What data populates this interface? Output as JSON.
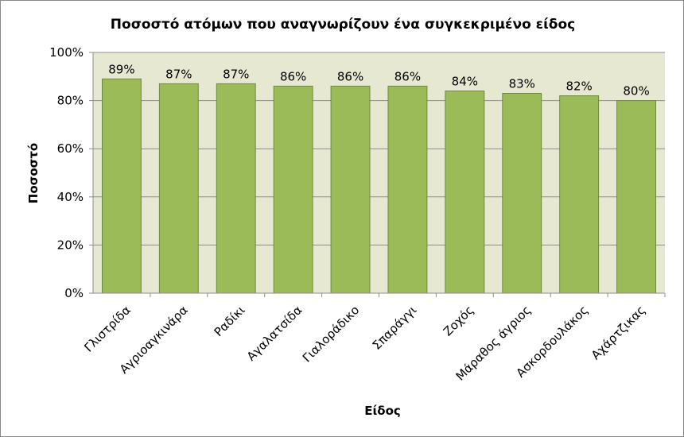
{
  "chart_data": {
    "type": "bar",
    "title": "Ποσοστό ατόμων που αναγνωρίζουν ένα συγκεκριμένο είδος",
    "xlabel": "Είδος",
    "ylabel": "Ποσοστό",
    "categories": [
      "Γλιστρίδα",
      "Αγριοαγκινάρα",
      "Ραδίκι",
      "Αγαλατσίδα",
      "Γιαλοράδικο",
      "Σπαράγγι",
      "Ζοχός",
      "Μάραθος άγριος",
      "Ασκορδουλάκος",
      "Αχάρτζικας"
    ],
    "values": [
      89,
      87,
      87,
      86,
      86,
      86,
      84,
      83,
      82,
      80
    ],
    "data_labels": [
      "89%",
      "87%",
      "87%",
      "86%",
      "86%",
      "86%",
      "84%",
      "83%",
      "82%",
      "80%"
    ],
    "ylim": [
      0,
      100
    ],
    "yticks": [
      0,
      20,
      40,
      60,
      80,
      100
    ],
    "ytick_labels": [
      "0%",
      "20%",
      "40%",
      "60%",
      "80%",
      "100%"
    ],
    "grid": true,
    "legend": "none",
    "colors": {
      "bar_fill": "#9bbb59",
      "bar_stroke": "#71893f",
      "plot_bg": "#e7e8d2",
      "grid": "#8c8c8c"
    }
  }
}
